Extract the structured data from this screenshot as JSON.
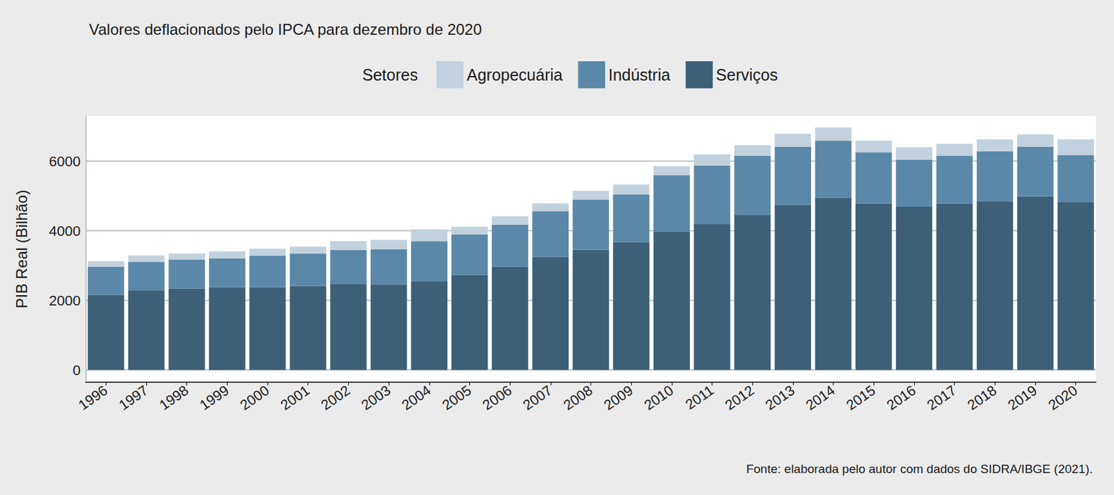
{
  "chart_data": {
    "type": "bar",
    "title": "Valores deflacionados pelo IPCA para dezembro de 2020",
    "legend_title": "Setores",
    "caption": "Fonte: elaborada pelo autor com dados do SIDRA/IBGE (2021).",
    "y_label": "PIB Real (Bilhão)",
    "categories": [
      "1996",
      "1997",
      "1998",
      "1999",
      "2000",
      "2001",
      "2002",
      "2003",
      "2004",
      "2005",
      "2006",
      "2007",
      "2008",
      "2009",
      "2010",
      "2011",
      "2012",
      "2013",
      "2014",
      "2015",
      "2016",
      "2017",
      "2018",
      "2019",
      "2020"
    ],
    "series": [
      {
        "name": "Agropecuária",
        "color": "#c1d1dd",
        "values": [
          160,
          180,
          180,
          200,
          200,
          200,
          250,
          270,
          340,
          220,
          240,
          220,
          260,
          280,
          260,
          320,
          300,
          370,
          380,
          330,
          360,
          340,
          350,
          350,
          450
        ]
      },
      {
        "name": "Indústria",
        "color": "#5b88a8",
        "values": [
          810,
          830,
          830,
          830,
          910,
          930,
          970,
          1010,
          1160,
          1170,
          1210,
          1320,
          1440,
          1370,
          1620,
          1680,
          1700,
          1670,
          1640,
          1470,
          1350,
          1370,
          1430,
          1430,
          1350
        ]
      },
      {
        "name": "Serviços",
        "color": "#3e5f78",
        "values": [
          2160,
          2280,
          2340,
          2380,
          2380,
          2420,
          2480,
          2460,
          2540,
          2730,
          2970,
          3250,
          3450,
          3680,
          3980,
          4200,
          4460,
          4750,
          4950,
          4790,
          4690,
          4790,
          4850,
          4990,
          4830
        ]
      }
    ],
    "stacked": true,
    "ylim": [
      -350,
      7300
    ],
    "yticks": [
      0,
      2000,
      4000,
      6000
    ],
    "grid": true,
    "legend": "top"
  }
}
